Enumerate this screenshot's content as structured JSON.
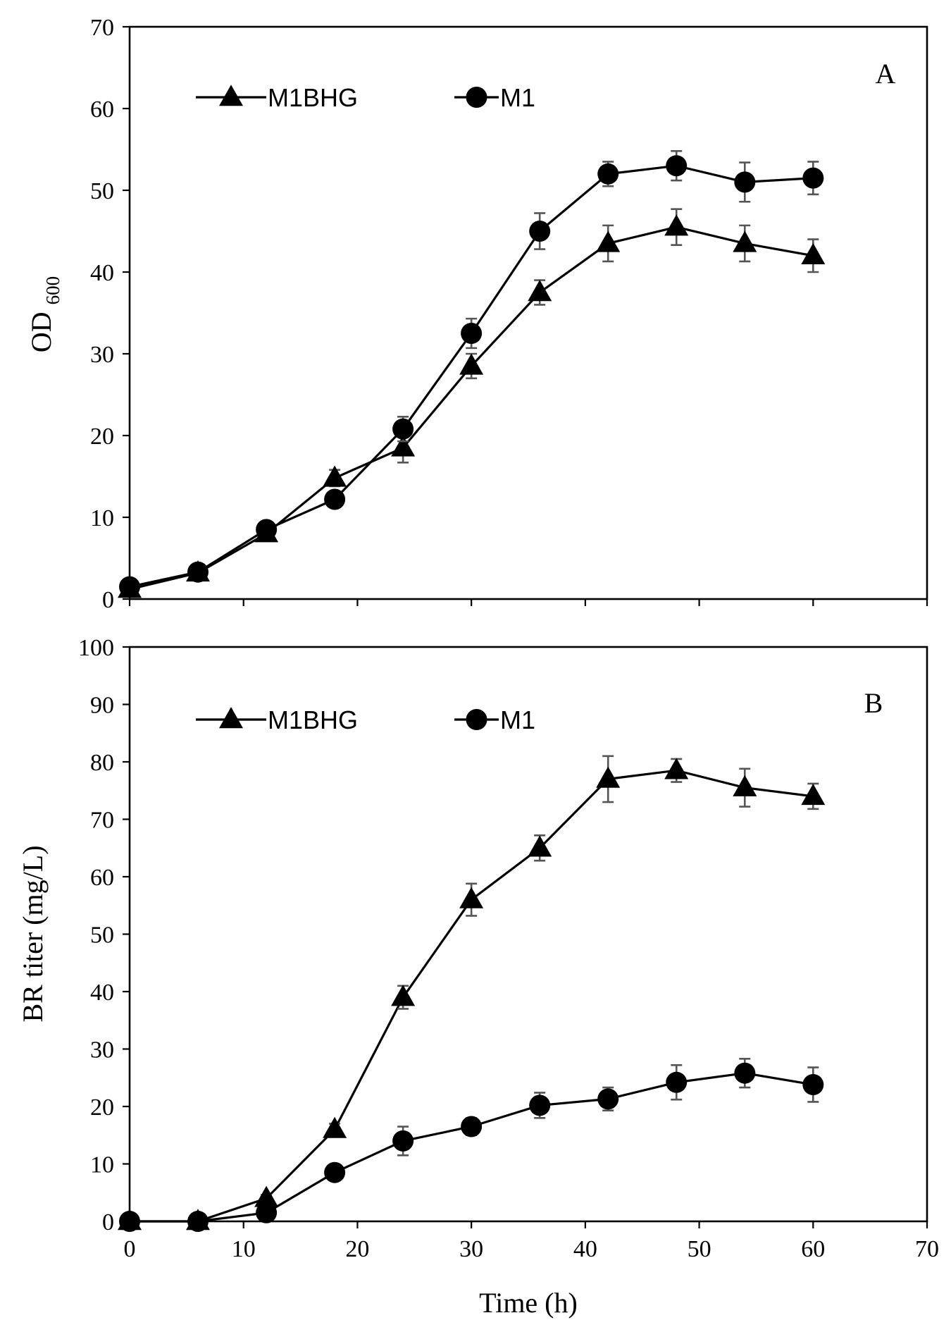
{
  "figure": {
    "xlabel": "Time (h)"
  },
  "chart_data": [
    {
      "type": "line",
      "panel_label": "A",
      "ylabel_main": "OD",
      "ylabel_subscript": "600",
      "xlim": [
        0,
        70
      ],
      "ylim": [
        0,
        70
      ],
      "xticks": [
        0,
        10,
        20,
        30,
        40,
        50,
        60,
        70
      ],
      "yticks": [
        0,
        10,
        20,
        30,
        40,
        50,
        60,
        70
      ],
      "show_x_tick_labels": false,
      "legend_position": "top-left",
      "x": [
        0,
        6,
        12,
        18,
        24,
        30,
        36,
        42,
        48,
        54,
        60
      ],
      "series": [
        {
          "name": "M1BHG",
          "marker": "triangle",
          "values": [
            1.2,
            3.2,
            8.0,
            14.8,
            18.5,
            28.5,
            37.5,
            43.5,
            45.5,
            43.5,
            42.0
          ],
          "errors": [
            0.3,
            0.4,
            0.6,
            1.0,
            1.8,
            1.5,
            1.5,
            2.2,
            2.2,
            2.2,
            2.0
          ]
        },
        {
          "name": "M1",
          "marker": "circle",
          "values": [
            1.5,
            3.3,
            8.5,
            12.2,
            20.8,
            32.5,
            45.0,
            52.0,
            53.0,
            51.0,
            51.5
          ],
          "errors": [
            0.3,
            0.4,
            0.6,
            0.8,
            1.5,
            1.8,
            2.2,
            1.5,
            1.8,
            2.4,
            2.0
          ]
        }
      ]
    },
    {
      "type": "line",
      "panel_label": "B",
      "ylabel_main": "BR titer (mg/L)",
      "xlim": [
        0,
        70
      ],
      "ylim": [
        0,
        100
      ],
      "xticks": [
        0,
        10,
        20,
        30,
        40,
        50,
        60,
        70
      ],
      "yticks": [
        0,
        10,
        20,
        30,
        40,
        50,
        60,
        70,
        80,
        90,
        100
      ],
      "show_x_tick_labels": true,
      "legend_position": "top-left",
      "x": [
        0,
        6,
        12,
        18,
        24,
        30,
        36,
        42,
        48,
        54,
        60
      ],
      "series": [
        {
          "name": "M1BHG",
          "marker": "triangle",
          "values": [
            0,
            0,
            4.0,
            16.0,
            39.0,
            56.0,
            65.0,
            77.0,
            78.5,
            75.5,
            74.0
          ],
          "errors": [
            0.3,
            0.3,
            0.6,
            1.0,
            2.0,
            2.8,
            2.2,
            4.0,
            2.0,
            3.3,
            2.2
          ]
        },
        {
          "name": "M1",
          "marker": "circle",
          "values": [
            0,
            0,
            1.5,
            8.5,
            14.0,
            16.5,
            20.2,
            21.3,
            24.2,
            25.8,
            23.8
          ],
          "errors": [
            0.3,
            0.3,
            0.5,
            1.0,
            2.5,
            1.5,
            2.2,
            2.0,
            3.0,
            2.5,
            3.0
          ]
        }
      ]
    }
  ]
}
